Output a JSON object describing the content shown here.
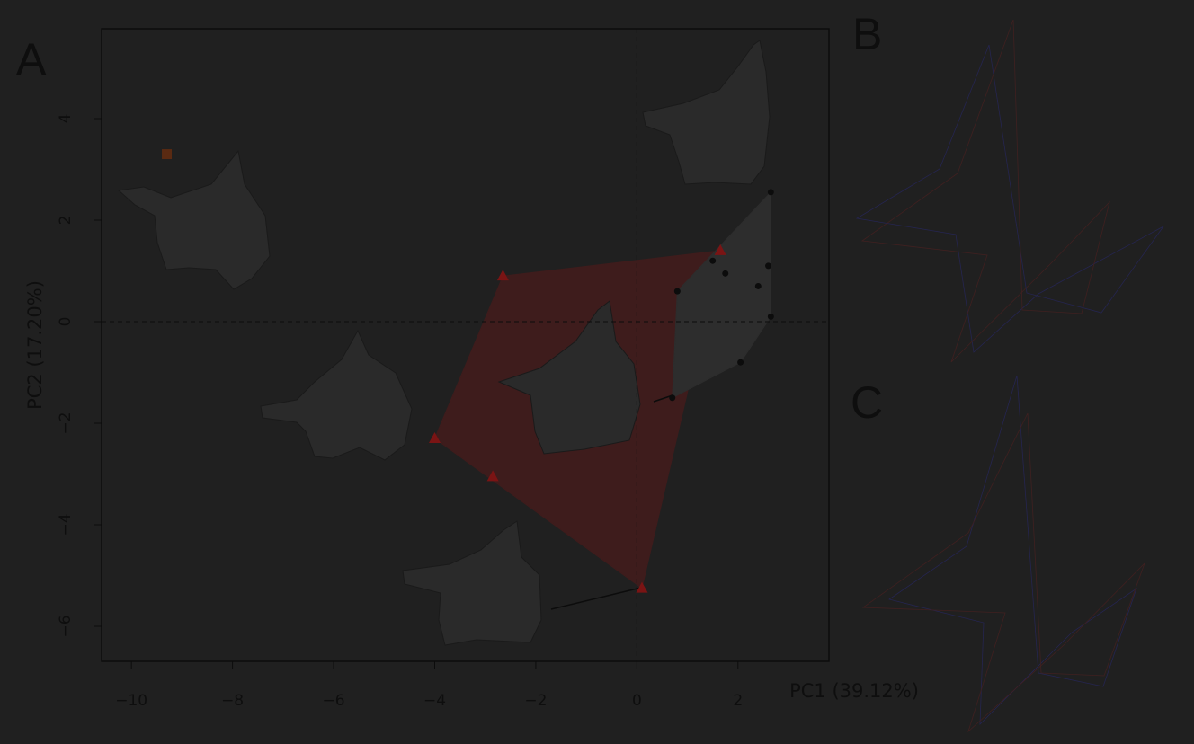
{
  "chart_data": {
    "type": "scatter",
    "panel_labels": [
      "A",
      "B",
      "C"
    ],
    "x_label": "PC1 (39.12%)",
    "y_label": "PC2 (17.20%)",
    "xlim": [
      -10.59,
      3.8
    ],
    "ylim": [
      -6.69,
      5.77
    ],
    "xticks": [
      {
        "value": -10,
        "label": "−10"
      },
      {
        "value": -8,
        "label": "−8"
      },
      {
        "value": -6,
        "label": "−6"
      },
      {
        "value": -4,
        "label": "−4"
      },
      {
        "value": -2,
        "label": "−2"
      },
      0,
      2
    ],
    "yticks": [
      {
        "value": -6,
        "label": "−6"
      },
      {
        "value": -4,
        "label": "−4"
      },
      {
        "value": -2,
        "label": "−2"
      },
      0,
      2,
      4
    ],
    "hline": 0,
    "vline": 0,
    "series": [
      {
        "marker": "triangle",
        "color": "#7a1414",
        "hull_color": "#3e1c1c",
        "x": [
          -2.65,
          1.65,
          0.1,
          -2.85,
          -4.0
        ],
        "values": [
          0.9,
          1.4,
          -5.25,
          -3.05,
          -2.3
        ]
      },
      {
        "marker": "circle",
        "color": "#0c0c0c",
        "hull_color": "#2d2d2d",
        "x": [
          0.8,
          1.5,
          1.75,
          2.65,
          2.6,
          2.4,
          2.65,
          2.05,
          0.7
        ],
        "values": [
          0.6,
          1.2,
          0.95,
          2.55,
          1.1,
          0.7,
          0.1,
          -0.8,
          -1.5
        ]
      },
      {
        "marker": "square",
        "color": "#5a2a12",
        "x": [
          -9.3
        ],
        "values": [
          3.3
        ]
      }
    ]
  }
}
